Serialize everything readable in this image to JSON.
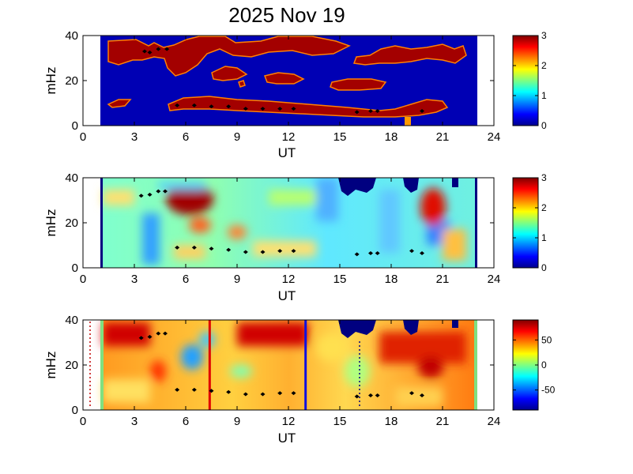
{
  "title": "2025 Nov 19",
  "chart_data": [
    {
      "type": "heatmap",
      "panel": "top",
      "xlabel": "UT",
      "ylabel": "mHz",
      "xlim": [
        0,
        24
      ],
      "ylim": [
        0,
        40
      ],
      "xticks": [
        0,
        3,
        6,
        9,
        12,
        15,
        18,
        21,
        24
      ],
      "yticks": [
        0,
        20,
        40
      ],
      "data_extent_x": [
        1,
        23
      ],
      "colorbar": {
        "min": 0,
        "max": 3,
        "ticks": [
          0,
          1,
          2,
          3
        ],
        "colormap": "jet"
      },
      "markers": [
        {
          "x": 3.6,
          "y": 33
        },
        {
          "x": 3.9,
          "y": 32.5
        },
        {
          "x": 4.4,
          "y": 34
        },
        {
          "x": 4.9,
          "y": 34
        },
        {
          "x": 5.5,
          "y": 9
        },
        {
          "x": 6.5,
          "y": 9
        },
        {
          "x": 7.5,
          "y": 8.5
        },
        {
          "x": 8.5,
          "y": 8.5
        },
        {
          "x": 9.5,
          "y": 7.5
        },
        {
          "x": 10.5,
          "y": 7.5
        },
        {
          "x": 11.5,
          "y": 7.5
        },
        {
          "x": 12.3,
          "y": 7.5
        },
        {
          "x": 16.0,
          "y": 6
        },
        {
          "x": 16.8,
          "y": 6.5
        },
        {
          "x": 17.2,
          "y": 6.5
        },
        {
          "x": 19.8,
          "y": 6.5
        }
      ]
    },
    {
      "type": "heatmap",
      "panel": "middle",
      "xlabel": "UT",
      "ylabel": "mHz",
      "xlim": [
        0,
        24
      ],
      "ylim": [
        0,
        40
      ],
      "xticks": [
        0,
        3,
        6,
        9,
        12,
        15,
        18,
        21,
        24
      ],
      "yticks": [
        0,
        20,
        40
      ],
      "data_extent_x": [
        1,
        23
      ],
      "colorbar": {
        "min": 0,
        "max": 3,
        "ticks": [
          0,
          1,
          2,
          3
        ],
        "colormap": "jet"
      },
      "markers": [
        {
          "x": 3.4,
          "y": 32
        },
        {
          "x": 3.9,
          "y": 32.5
        },
        {
          "x": 4.4,
          "y": 34
        },
        {
          "x": 4.8,
          "y": 34
        },
        {
          "x": 5.5,
          "y": 9
        },
        {
          "x": 6.5,
          "y": 9
        },
        {
          "x": 7.5,
          "y": 8.5
        },
        {
          "x": 8.5,
          "y": 8
        },
        {
          "x": 9.5,
          "y": 7
        },
        {
          "x": 10.5,
          "y": 7
        },
        {
          "x": 11.5,
          "y": 7.5
        },
        {
          "x": 12.3,
          "y": 7.5
        },
        {
          "x": 16.0,
          "y": 6
        },
        {
          "x": 16.8,
          "y": 6.5
        },
        {
          "x": 17.2,
          "y": 6.5
        },
        {
          "x": 19.2,
          "y": 7.5
        },
        {
          "x": 19.8,
          "y": 6.5
        }
      ]
    },
    {
      "type": "heatmap",
      "panel": "bottom",
      "xlabel": "UT",
      "ylabel": "mHz",
      "xlim": [
        0,
        24
      ],
      "ylim": [
        0,
        40
      ],
      "xticks": [
        0,
        3,
        6,
        9,
        12,
        15,
        18,
        21,
        24
      ],
      "yticks": [
        0,
        20,
        40
      ],
      "data_extent_x": [
        1,
        23
      ],
      "colorbar": {
        "min": -90,
        "max": 90,
        "ticks": [
          -50,
          0,
          50
        ],
        "colormap": "jet"
      },
      "vertical_lines": [
        {
          "x": 7.4,
          "color": "#e00000"
        },
        {
          "x": 13.0,
          "color": "#1010e0"
        }
      ],
      "markers": [
        {
          "x": 3.4,
          "y": 32
        },
        {
          "x": 3.9,
          "y": 32.5
        },
        {
          "x": 4.4,
          "y": 34
        },
        {
          "x": 4.8,
          "y": 34
        },
        {
          "x": 5.5,
          "y": 9
        },
        {
          "x": 6.5,
          "y": 9
        },
        {
          "x": 7.5,
          "y": 8.5
        },
        {
          "x": 8.5,
          "y": 8
        },
        {
          "x": 9.5,
          "y": 7
        },
        {
          "x": 10.5,
          "y": 7
        },
        {
          "x": 11.5,
          "y": 7.5
        },
        {
          "x": 12.3,
          "y": 7.5
        },
        {
          "x": 16.0,
          "y": 6
        },
        {
          "x": 16.8,
          "y": 6.5
        },
        {
          "x": 17.2,
          "y": 6.5
        },
        {
          "x": 19.2,
          "y": 7.5
        },
        {
          "x": 19.8,
          "y": 6.5
        }
      ]
    }
  ]
}
